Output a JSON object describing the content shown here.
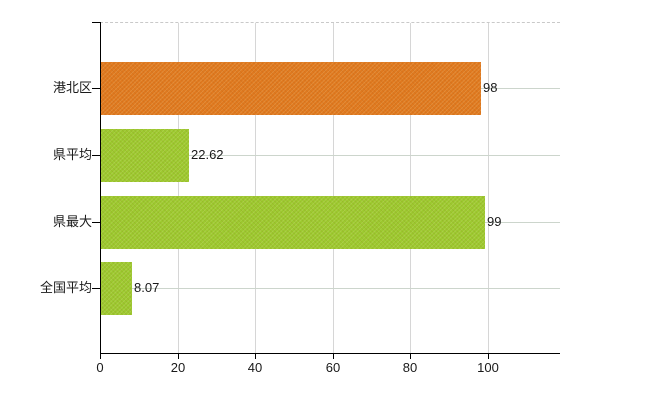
{
  "chart_data": {
    "type": "bar",
    "orientation": "horizontal",
    "title": "",
    "categories": [
      "港北区",
      "県平均",
      "県最大",
      "全国平均"
    ],
    "values": [
      98,
      22.62,
      99,
      8.07
    ],
    "value_labels": [
      "98",
      "22.62",
      "99",
      "8.07"
    ],
    "bar_colors": [
      "#e0791f",
      "#9cc92f",
      "#9cc92f",
      "#9cc92f"
    ],
    "x_axis": {
      "ticks": [
        0,
        20,
        40,
        60,
        80,
        100
      ],
      "tick_labels": [
        "0",
        "20",
        "40",
        "60",
        "80",
        "100"
      ],
      "min": 0,
      "max": 118.5
    },
    "grid": {
      "vertical": true,
      "horizontal": true,
      "top_border": "dashed"
    },
    "legend": "none",
    "colors": {
      "background": "#ffffff",
      "axis": "#000000",
      "grid_vertical": "#d6d6d6",
      "grid_horizontal": "#ccd5cc",
      "top_dashed": "#c9c9c9",
      "label": "#1a1a1a",
      "bar_orange": "#e0791f",
      "bar_green": "#9cc92f"
    }
  }
}
